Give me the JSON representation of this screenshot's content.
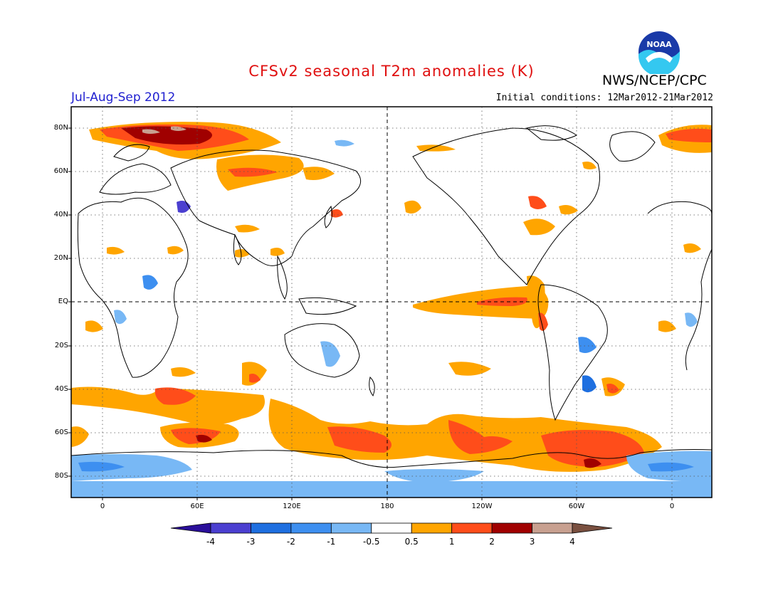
{
  "title": "CFSv2 seasonal T2m anomalies (K)",
  "agency": "NWS/NCEP/CPC",
  "season": "Jul-Aug-Sep 2012",
  "initial_conditions": "Initial conditions: 12Mar2012-21Mar2012",
  "logo_text": "NOAA",
  "lat_labels": [
    "80N",
    "60N",
    "40N",
    "20N",
    "EQ",
    "20S",
    "40S",
    "60S",
    "80S"
  ],
  "lon_labels": [
    "0",
    "60E",
    "120E",
    "180",
    "120W",
    "60W",
    "0"
  ],
  "colorbar": {
    "labels": [
      "-4",
      "-3",
      "-2",
      "-1",
      "-0.5",
      "0.5",
      "1",
      "2",
      "3",
      "4"
    ],
    "colors": [
      "#2a0f9a",
      "#4b3fd0",
      "#1e6fe0",
      "#3d8ff0",
      "#78b8f5",
      "#ffffff",
      "#ffa500",
      "#ff4d1a",
      "#a00000",
      "#c8a090",
      "#7a5040"
    ]
  },
  "colors": {
    "neutral": "#ffffff",
    "warm_1": "#ffa500",
    "warm_2": "#ff4d1a",
    "warm_3": "#a00000",
    "warm_4": "#c8a090",
    "cool_1": "#78b8f5",
    "cool_2": "#3d8ff0",
    "cool_3": "#1e6fe0",
    "cool_4": "#4b3fd0"
  }
}
